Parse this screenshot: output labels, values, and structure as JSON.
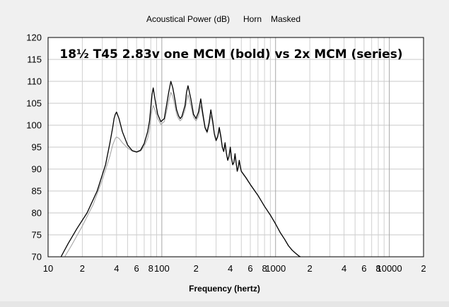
{
  "header": {
    "measurement": "Acoustical Power (dB)",
    "mode": "Horn",
    "option": "Masked"
  },
  "chart_data": {
    "type": "line",
    "title": "18½ T45 2.83v one MCM (bold) vs 2x MCM (series)",
    "xlabel": "Frequency (hertz)",
    "ylabel": "",
    "x_scale": "log",
    "xlim": [
      10,
      20000
    ],
    "ylim": [
      70,
      120
    ],
    "grid": true,
    "x_tick_labels": [
      {
        "value": 10,
        "label": "10"
      },
      {
        "value": 20,
        "label": "2"
      },
      {
        "value": 40,
        "label": "4"
      },
      {
        "value": 60,
        "label": "6"
      },
      {
        "value": 80,
        "label": "8"
      },
      {
        "value": 100,
        "label": "100"
      },
      {
        "value": 200,
        "label": "2"
      },
      {
        "value": 400,
        "label": "4"
      },
      {
        "value": 600,
        "label": "6"
      },
      {
        "value": 800,
        "label": "8"
      },
      {
        "value": 1000,
        "label": "1000"
      },
      {
        "value": 2000,
        "label": "2"
      },
      {
        "value": 4000,
        "label": "4"
      },
      {
        "value": 6000,
        "label": "6"
      },
      {
        "value": 8000,
        "label": "8"
      },
      {
        "value": 10000,
        "label": "10000"
      },
      {
        "value": 20000,
        "label": "2"
      }
    ],
    "y_ticks": [
      70,
      75,
      80,
      85,
      90,
      95,
      100,
      105,
      110,
      115,
      120
    ],
    "series": [
      {
        "color": "#000000",
        "x": [
          13,
          15,
          18,
          22,
          27,
          32,
          35,
          37,
          38,
          39,
          40,
          42,
          45,
          50,
          55,
          60,
          65,
          70,
          75,
          78,
          80,
          82,
          84,
          87,
          92,
          98,
          105,
          110,
          115,
          120,
          125,
          130,
          135,
          140,
          145,
          150,
          160,
          165,
          170,
          180,
          190,
          200,
          210,
          220,
          230,
          240,
          250,
          260,
          270,
          280,
          290,
          300,
          310,
          320,
          330,
          340,
          350,
          360,
          370,
          380,
          390,
          400,
          410,
          420,
          430,
          440,
          450,
          460,
          470,
          480,
          490,
          500,
          550,
          600,
          700,
          800,
          900,
          1000,
          1100,
          1200,
          1300,
          1400,
          1500,
          1600,
          1650
        ],
        "y": [
          70,
          73,
          76.5,
          80,
          85,
          91,
          96,
          99.5,
          101.5,
          102.5,
          103,
          101.5,
          98.5,
          95.5,
          94.2,
          93.9,
          94.3,
          95.8,
          98.5,
          101,
          104,
          107,
          108.5,
          106,
          102.5,
          100.8,
          101.5,
          104.5,
          107.5,
          110,
          108.5,
          106,
          103.5,
          102.2,
          101.5,
          102,
          104.5,
          107.5,
          109,
          106,
          102.5,
          101.5,
          103,
          106,
          102.5,
          99.5,
          98.5,
          100.5,
          103.5,
          101,
          98,
          96.5,
          97.5,
          99.5,
          97.5,
          95,
          94,
          96,
          93.5,
          92,
          93,
          95,
          92.5,
          91,
          91.5,
          93.5,
          91.5,
          89.5,
          90.5,
          92,
          90.5,
          89.5,
          88,
          86.5,
          84,
          81.5,
          79.5,
          77.5,
          75.5,
          74,
          72.5,
          71.5,
          70.8,
          70.2,
          70
        ]
      },
      {
        "color": "#a0a0a0",
        "x": [
          14,
          16,
          20,
          25,
          30,
          35,
          37,
          39,
          40,
          42,
          45,
          50,
          55,
          60,
          65,
          70,
          75,
          78,
          80,
          82,
          84,
          87,
          92,
          98,
          105,
          110,
          115,
          120,
          125,
          130,
          135,
          140,
          145,
          150,
          160,
          165,
          170,
          180,
          190,
          200,
          210,
          220,
          230,
          240,
          250,
          260,
          270,
          280,
          290,
          300,
          310,
          320,
          330,
          340,
          350,
          360,
          370,
          380,
          390,
          400,
          410,
          420,
          430,
          440,
          450,
          460,
          470,
          480,
          490,
          500,
          550,
          600,
          700,
          800,
          900,
          1000,
          1100,
          1200,
          1300,
          1400,
          1500,
          1600,
          1650
        ],
        "y": [
          70,
          72.5,
          77,
          82,
          87.5,
          93,
          95.5,
          97,
          97.3,
          97,
          96,
          94.8,
          94.1,
          93.8,
          94.1,
          95.2,
          97,
          99,
          101.5,
          103.5,
          104.5,
          103.5,
          101.5,
          100.2,
          100.8,
          103,
          105.5,
          107.5,
          106.5,
          104.5,
          102.5,
          101.5,
          101,
          101.4,
          103.5,
          105.5,
          107,
          104.5,
          101.8,
          101,
          102,
          104.5,
          101.8,
          99.2,
          98.2,
          99.8,
          102.2,
          100.4,
          97.8,
          96.4,
          97.2,
          98.8,
          97.1,
          94.9,
          94,
          95.5,
          93.3,
          91.9,
          92.8,
          94.5,
          92.3,
          90.9,
          91.4,
          93,
          91.3,
          89.5,
          90.3,
          91.6,
          90.3,
          89.4,
          87.9,
          86.4,
          84,
          81.5,
          79.5,
          77.5,
          75.5,
          74,
          72.5,
          71.5,
          70.8,
          70.2,
          70
        ]
      }
    ]
  }
}
